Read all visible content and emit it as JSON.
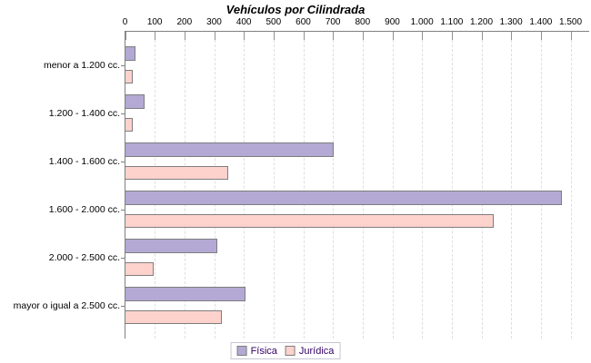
{
  "window": {
    "background": "#ffffff"
  },
  "chart_data": {
    "type": "bar",
    "orientation": "horizontal",
    "title": "Vehículos por Cilindrada",
    "categories": [
      "menor a 1.200 cc.",
      "1.200 - 1.400 cc.",
      "1.400 - 1.600 cc.",
      "1.600 - 2.000 cc.",
      "2.000 - 2.500 cc.",
      "mayor o igual a 2.500 cc."
    ],
    "series": [
      {
        "name": "Física",
        "color": "#b3a9d4",
        "values": [
          35,
          65,
          700,
          1470,
          310,
          405
        ]
      },
      {
        "name": "Jurídica",
        "color": "#fdd2cc",
        "values": [
          25,
          25,
          345,
          1240,
          95,
          325
        ]
      }
    ],
    "xlim": [
      0,
      1500
    ],
    "x_tick_labels": [
      "0",
      "100",
      "200",
      "300",
      "400",
      "500",
      "600",
      "700",
      "800",
      "900",
      "1.000",
      "1.100",
      "1.200",
      "1.300",
      "1.400",
      "1.500"
    ],
    "axis_position": "top",
    "grid": "vertical-dashed",
    "legend_position": "bottom-center",
    "colors": {
      "bar_border": "#7e7e7e",
      "axis": "#808080",
      "gridline": "#dedede",
      "title_text": "#000000",
      "tick_text": "#000000",
      "category_text": "#000000",
      "legend_text": "#330066",
      "legend_border": "#c6c6d2"
    }
  }
}
